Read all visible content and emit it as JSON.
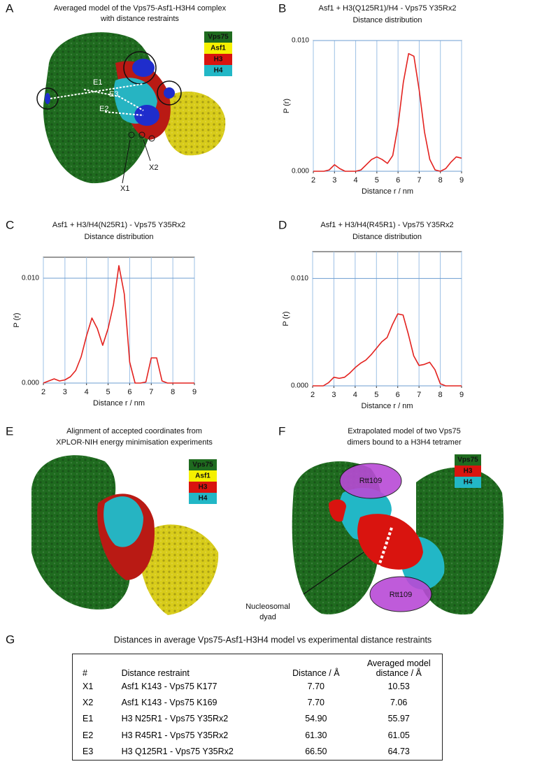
{
  "panels": {
    "a": {
      "letter": "A",
      "title": "Averaged model of the Vps75-Asf1-H3H4 complex",
      "subtitle": "with distance restraints",
      "legend": [
        "Vps75",
        "Asf1",
        "H3",
        "H4"
      ],
      "labels": [
        "E1",
        "E3",
        "E2",
        "X1",
        "X2"
      ]
    },
    "e": {
      "letter": "E",
      "title": "Alignment of accepted coordinates from",
      "subtitle": "XPLOR-NIH energy minimisation experiments",
      "legend": [
        "Vps75",
        "Asf1",
        "H3",
        "H4"
      ]
    },
    "f": {
      "letter": "F",
      "title": "Extrapolated model of two Vps75",
      "subtitle": "dimers bound to a H3H4 tetramer",
      "legend": [
        "Vps75",
        "H3",
        "H4"
      ],
      "labels": [
        "Rtt109",
        "Rtt109",
        "Nucleosomal",
        "dyad"
      ]
    },
    "g": {
      "letter": "G"
    }
  },
  "chart_data": [
    {
      "type": "line",
      "panel_label": "B",
      "title": "Asf1 + H3(Q125R1)/H4 - Vps75 Y35Rx2",
      "subtitle": "Distance distribution",
      "x_label": "Distance r / nm",
      "y_label": "P (r)",
      "color": "#e3221f",
      "grid": true,
      "xlim": [
        2,
        9
      ],
      "xticks": [
        2,
        3,
        4,
        5,
        6,
        7,
        8,
        9
      ],
      "ylim": [
        0,
        0.01
      ],
      "yticks": [
        {
          "value": 0,
          "label": "0.000"
        },
        {
          "value": 0.01,
          "label": "0.010"
        }
      ],
      "x": [
        2,
        2.25,
        2.5,
        2.75,
        3,
        3.25,
        3.5,
        3.75,
        4,
        4.25,
        4.5,
        4.75,
        5,
        5.25,
        5.5,
        5.75,
        6,
        6.25,
        6.5,
        6.75,
        7,
        7.25,
        7.5,
        7.75,
        8,
        8.25,
        8.5,
        8.75,
        9
      ],
      "values": [
        0,
        0,
        0,
        0.0001,
        0.0005,
        0.0002,
        0,
        0,
        0,
        0.0001,
        0.0005,
        0.0009,
        0.0011,
        0.0009,
        0.0006,
        0.0012,
        0.0035,
        0.0068,
        0.009,
        0.0088,
        0.0062,
        0.003,
        0.0009,
        0.0001,
        0,
        0.0002,
        0.0007,
        0.0011,
        0.001
      ]
    },
    {
      "type": "line",
      "panel_label": "C",
      "title": "Asf1 + H3/H4(N25R1) - Vps75 Y35Rx2",
      "subtitle": "Distance distribution",
      "x_label": "Distance r / nm",
      "y_label": "P (r)",
      "color": "#e3221f",
      "grid": true,
      "xlim": [
        2,
        9
      ],
      "xticks": [
        2,
        3,
        4,
        5,
        6,
        7,
        8,
        9
      ],
      "ylim": [
        0,
        0.012
      ],
      "yticks": [
        {
          "value": 0,
          "label": "0.000"
        },
        {
          "value": 0.01,
          "label": "0.010"
        }
      ],
      "x": [
        2,
        2.25,
        2.5,
        2.75,
        3,
        3.25,
        3.5,
        3.75,
        4,
        4.25,
        4.5,
        4.75,
        5,
        5.25,
        5.5,
        5.75,
        6,
        6.25,
        6.5,
        6.75,
        7,
        7.25,
        7.5,
        7.75,
        8,
        8.25,
        8.5,
        8.75,
        9
      ],
      "values": [
        0,
        0.0002,
        0.0004,
        0.0002,
        0.0003,
        0.0006,
        0.0012,
        0.0025,
        0.0045,
        0.0062,
        0.0052,
        0.0036,
        0.0052,
        0.0075,
        0.0112,
        0.0085,
        0.002,
        0,
        0,
        0.0001,
        0.0024,
        0.0024,
        0.0002,
        0,
        0,
        0,
        0,
        0,
        0
      ]
    },
    {
      "type": "line",
      "panel_label": "D",
      "title": "Asf1 + H3/H4(R45R1) - Vps75 Y35Rx2",
      "subtitle": "Distance distribution",
      "x_label": "Distance r / nm",
      "y_label": "P (r)",
      "color": "#e3221f",
      "grid": true,
      "xlim": [
        2,
        9
      ],
      "xticks": [
        2,
        3,
        4,
        5,
        6,
        7,
        8,
        9
      ],
      "ylim": [
        0,
        0.0125
      ],
      "yticks": [
        {
          "value": 0,
          "label": "0.000"
        },
        {
          "value": 0.01,
          "label": "0.010"
        }
      ],
      "x": [
        2,
        2.25,
        2.5,
        2.75,
        3,
        3.25,
        3.5,
        3.75,
        4,
        4.25,
        4.5,
        4.75,
        5,
        5.25,
        5.5,
        5.75,
        6,
        6.25,
        6.5,
        6.75,
        7,
        7.25,
        7.5,
        7.75,
        8,
        8.25,
        8.5,
        8.75,
        9
      ],
      "values": [
        0,
        0,
        0,
        0.0003,
        0.0008,
        0.0007,
        0.0008,
        0.0012,
        0.0017,
        0.0021,
        0.0024,
        0.0029,
        0.0035,
        0.0041,
        0.0045,
        0.0057,
        0.0067,
        0.0066,
        0.0048,
        0.0028,
        0.0019,
        0.002,
        0.0022,
        0.0015,
        0.0002,
        0,
        0,
        0,
        0
      ]
    }
  ],
  "table": {
    "title": "Distances in average Vps75-Asf1-H3H4 model vs experimental distance restraints",
    "headers": [
      "#",
      "Distance restraint",
      "Distance / Å",
      "Averaged model distance / Å"
    ],
    "rows": [
      [
        "X1",
        "Asf1 K143 - Vps75 K177",
        "7.70",
        "10.53"
      ],
      [
        "X2",
        "Asf1 K143 - Vps75 K169",
        "7.70",
        "7.06"
      ],
      [
        "E1",
        "H3 N25R1 - Vps75 Y35Rx2",
        "54.90",
        "55.97"
      ],
      [
        "E2",
        "H3 R45R1 - Vps75 Y35Rx2",
        "61.30",
        "61.05"
      ],
      [
        "E3",
        "H3 Q125R1 - Vps75 Y35Rx2",
        "66.50",
        "64.73"
      ]
    ]
  }
}
